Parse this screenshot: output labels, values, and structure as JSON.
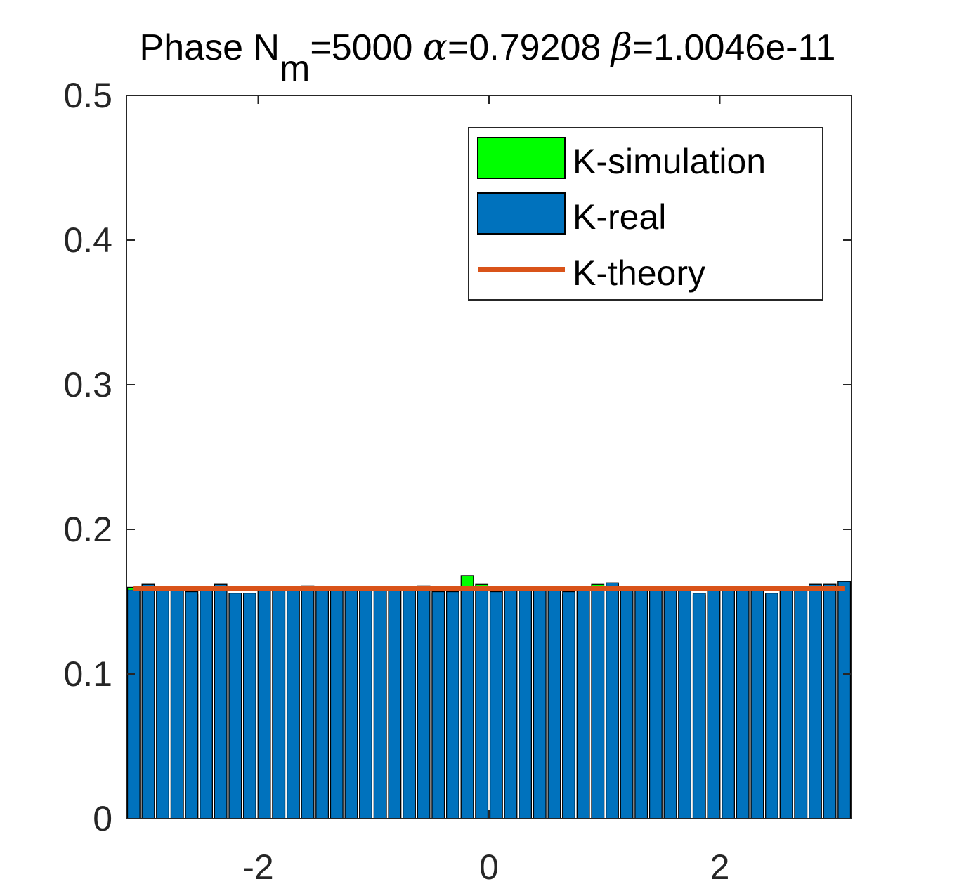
{
  "chart_data": {
    "type": "bar",
    "title": {
      "prefix": "Phase N",
      "subscript": "m",
      "nm_text": "=5000 ",
      "alpha_symbol": "α",
      "alpha_text": "=0.79208 ",
      "beta_symbol": "β",
      "beta_text": "=1.0046e-11"
    },
    "xlabel": "",
    "ylabel": "",
    "xlim": [
      -3.1416,
      3.1416
    ],
    "ylim": [
      0,
      0.5
    ],
    "xticks": [
      -2,
      0,
      2
    ],
    "xtick_labels": [
      "-2",
      "0",
      "2"
    ],
    "yticks": [
      0,
      0.1,
      0.2,
      0.3,
      0.4,
      0.5
    ],
    "ytick_labels": [
      "0",
      "0.1",
      "0.2",
      "0.3",
      "0.4",
      "0.5"
    ],
    "bin_count": 50,
    "series": [
      {
        "name": "K-simulation",
        "color": "#00ff00",
        "values": [
          0.16,
          0.162,
          0.158,
          0.158,
          0.155,
          0.159,
          0.162,
          0.156,
          0.154,
          0.16,
          0.158,
          0.158,
          0.161,
          0.16,
          0.16,
          0.158,
          0.159,
          0.158,
          0.158,
          0.158,
          0.16,
          0.156,
          0.158,
          0.168,
          0.162,
          0.157,
          0.16,
          0.158,
          0.158,
          0.158,
          0.155,
          0.158,
          0.162,
          0.162,
          0.156,
          0.158,
          0.158,
          0.158,
          0.158,
          0.154,
          0.158,
          0.158,
          0.158,
          0.16,
          0.155,
          0.158,
          0.158,
          0.162,
          0.162,
          0.164
        ]
      },
      {
        "name": "K-real",
        "color": "#0072bd",
        "values": [
          0.158,
          0.162,
          0.158,
          0.158,
          0.157,
          0.158,
          0.162,
          0.156,
          0.156,
          0.16,
          0.158,
          0.158,
          0.16,
          0.16,
          0.16,
          0.158,
          0.16,
          0.158,
          0.158,
          0.158,
          0.161,
          0.157,
          0.157,
          0.158,
          0.16,
          0.157,
          0.16,
          0.158,
          0.158,
          0.158,
          0.157,
          0.158,
          0.16,
          0.163,
          0.158,
          0.158,
          0.158,
          0.158,
          0.158,
          0.156,
          0.158,
          0.158,
          0.158,
          0.16,
          0.156,
          0.158,
          0.158,
          0.162,
          0.162,
          0.164
        ]
      }
    ],
    "theory": {
      "name": "K-theory",
      "color": "#d95319",
      "value": 0.159,
      "x_range": [
        -3.08,
        3.08
      ]
    },
    "legend": {
      "location": "top-right",
      "entries": [
        "K-simulation",
        "K-real",
        "K-theory"
      ]
    }
  }
}
